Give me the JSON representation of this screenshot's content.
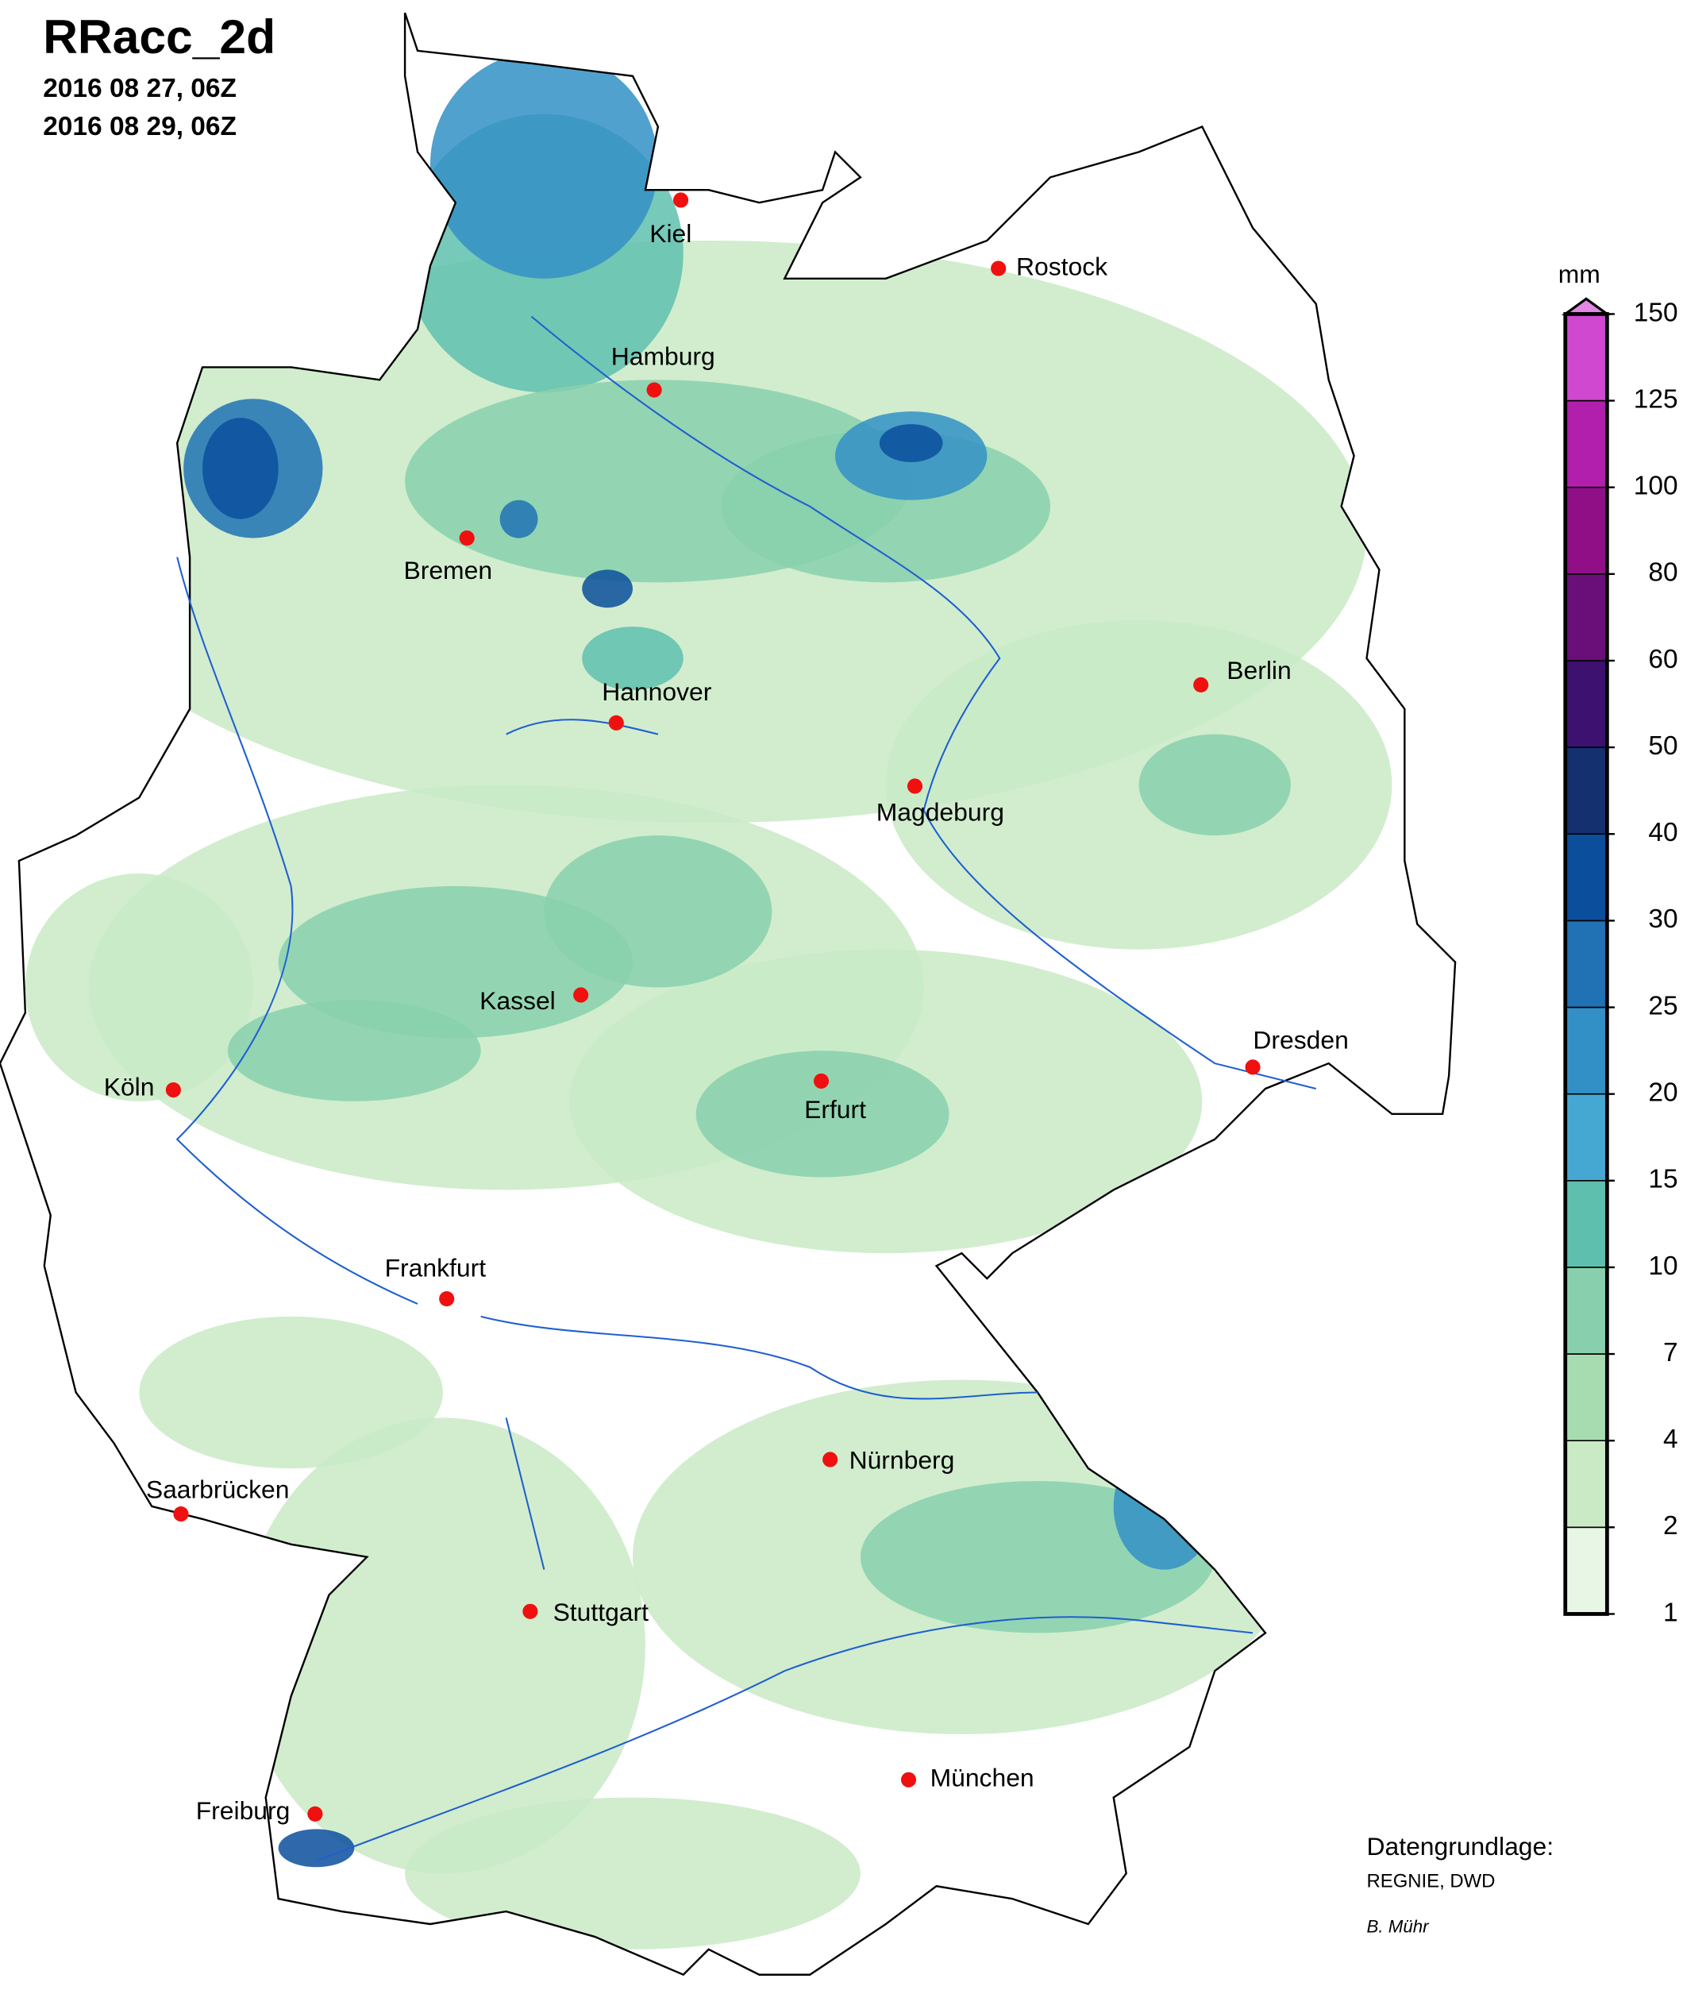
{
  "header": {
    "title": "RRacc_2d",
    "start": "2016 08 27, 06Z",
    "end": "2016 08 29, 06Z"
  },
  "cities": [
    {
      "label": "Kiel"
    },
    {
      "label": "Rostock"
    },
    {
      "label": "Hamburg"
    },
    {
      "label": "Bremen"
    },
    {
      "label": "Hannover"
    },
    {
      "label": "Berlin"
    },
    {
      "label": "Magdeburg"
    },
    {
      "label": "Kassel"
    },
    {
      "label": "Köln"
    },
    {
      "label": "Erfurt"
    },
    {
      "label": "Dresden"
    },
    {
      "label": "Frankfurt"
    },
    {
      "label": "Nürnberg"
    },
    {
      "label": "Saarbrücken"
    },
    {
      "label": "Stuttgart"
    },
    {
      "label": "Freiburg"
    },
    {
      "label": "München"
    }
  ],
  "legend": {
    "unit": "mm",
    "levels": [
      1,
      2,
      4,
      7,
      10,
      15,
      20,
      25,
      30,
      40,
      50,
      60,
      80,
      100,
      125,
      150
    ],
    "colors": [
      "#e8f6e6",
      "#c9eac5",
      "#a7dcb1",
      "#88d0ad",
      "#5fbfae",
      "#45a8d2",
      "#3290c6",
      "#2072b4",
      "#0b4f9c",
      "#14306e",
      "#3d116f",
      "#6a0f79",
      "#900e86",
      "#b31fad",
      "#cf48cf"
    ],
    "over_color": "#e288e2"
  },
  "credits": {
    "source_label": "Datengrundlage:",
    "source": "REGNIE, DWD",
    "author": "B. Mühr"
  }
}
